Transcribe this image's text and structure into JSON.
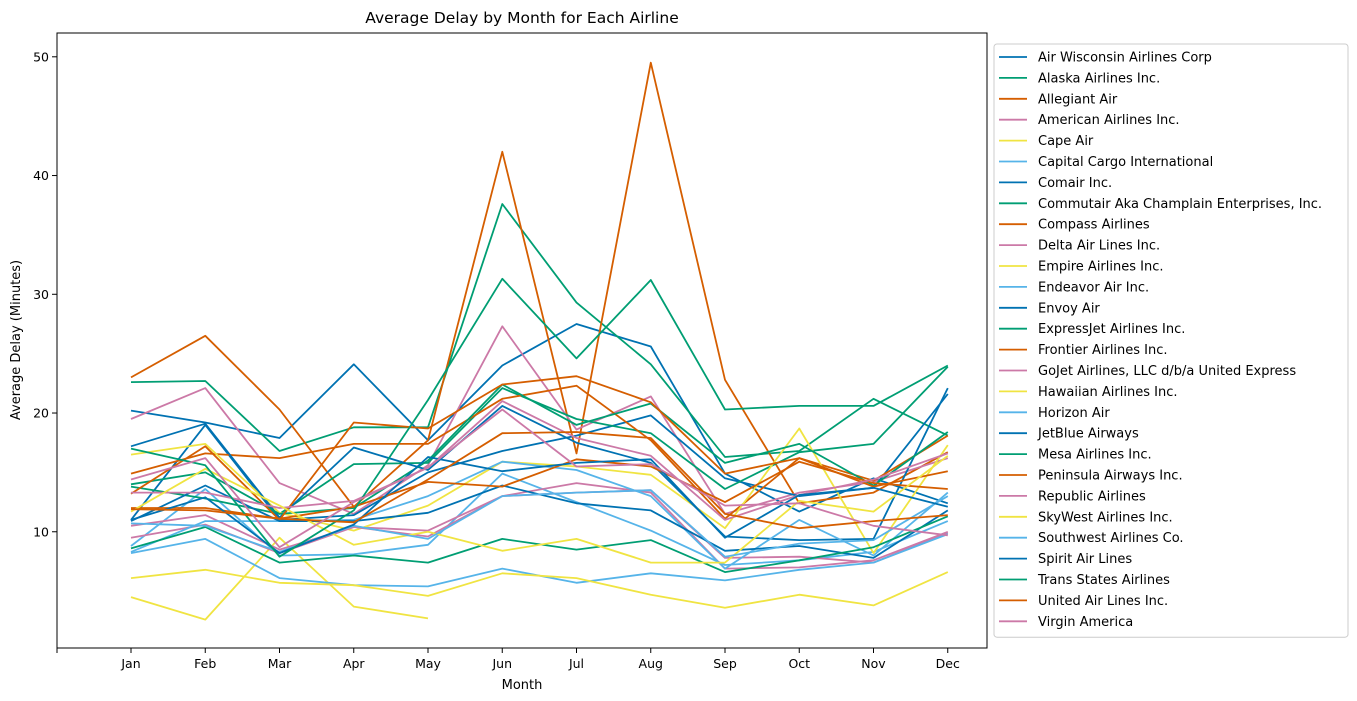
{
  "chart_data": {
    "type": "line",
    "title": "Average Delay by Month for Each Airline",
    "xlabel": "Month",
    "ylabel": "Average Delay (Minutes)",
    "categories": [
      "Jan",
      "Feb",
      "Mar",
      "Apr",
      "May",
      "Jun",
      "Jul",
      "Aug",
      "Sep",
      "Oct",
      "Nov",
      "Dec"
    ],
    "ylim": [
      0,
      52
    ],
    "yticks": [
      10,
      20,
      30,
      40,
      50
    ],
    "grid": false,
    "legend_placement": "outside-right",
    "palette": [
      "#0072B2",
      "#009E73",
      "#D55E00",
      "#CC79A7",
      "#F0E442",
      "#56B4E9"
    ],
    "series": [
      {
        "name": "Air Wisconsin Airlines Corp",
        "values": [
          20.2,
          19.2,
          17.9,
          24.1,
          17.7,
          24.0,
          27.5,
          25.6,
          14.9,
          11.7,
          14.5,
          12.4
        ]
      },
      {
        "name": "Alaska Airlines Inc.",
        "values": [
          22.6,
          22.7,
          16.8,
          18.8,
          18.8,
          37.6,
          29.3,
          24.1,
          16.3,
          16.8,
          21.2,
          18.1
        ]
      },
      {
        "name": "Allegiant Air",
        "values": [
          23.0,
          26.5,
          20.3,
          12.1,
          17.7,
          42.0,
          16.6,
          49.5,
          22.8,
          12.4,
          13.3,
          16.7
        ]
      },
      {
        "name": "American Airlines Inc.",
        "values": [
          19.5,
          22.1,
          14.1,
          11.5,
          15.6,
          27.3,
          18.6,
          21.4,
          11.5,
          13.3,
          14.2,
          16.2
        ]
      },
      {
        "name": "Cape Air",
        "values": [
          4.5,
          2.6,
          9.5,
          3.7,
          2.7,
          null,
          null,
          null,
          null,
          null,
          null,
          null
        ]
      },
      {
        "name": "Capital Cargo International",
        "values": [
          8.8,
          13.6,
          8.0,
          8.1,
          8.9,
          14.9,
          12.5,
          10.1,
          7.2,
          7.6,
          8.3,
          10.9
        ]
      },
      {
        "name": "Comair Inc.",
        "values": [
          11.0,
          19.0,
          11.0,
          11.4,
          15.0,
          16.8,
          18.1,
          19.8,
          14.5,
          13.0,
          13.7,
          21.6
        ]
      },
      {
        "name": "Commutair Aka Champlain Enterprises, Inc.",
        "values": [
          13.8,
          12.8,
          11.5,
          15.7,
          15.8,
          22.1,
          19.5,
          18.3,
          13.6,
          16.7,
          17.4,
          23.9
        ]
      },
      {
        "name": "Compass Airlines",
        "values": [
          14.9,
          16.6,
          16.2,
          17.4,
          17.4,
          21.2,
          22.3,
          17.7,
          11.1,
          16.2,
          14.3,
          18.1
        ]
      },
      {
        "name": "Delta Air Lines Inc.",
        "values": [
          10.5,
          11.4,
          8.5,
          10.4,
          10.1,
          13.0,
          13.3,
          13.5,
          7.8,
          7.9,
          7.4,
          9.9
        ]
      },
      {
        "name": "Empire Airlines Inc.",
        "values": [
          16.5,
          17.4,
          11.6,
          10.1,
          12.2,
          15.9,
          15.5,
          14.8,
          10.3,
          18.7,
          8.2,
          17.3
        ]
      },
      {
        "name": "Endeavor Air Inc.",
        "values": [
          8.2,
          9.4,
          6.1,
          5.5,
          5.4,
          6.9,
          5.7,
          6.5,
          5.9,
          6.8,
          7.4,
          9.8
        ]
      },
      {
        "name": "Envoy Air",
        "values": [
          17.2,
          19.1,
          11.2,
          17.1,
          15.2,
          20.6,
          17.5,
          15.8,
          9.6,
          9.3,
          9.4,
          22.1
        ]
      },
      {
        "name": "ExpressJet Airlines Inc.",
        "values": [
          14.0,
          15.0,
          11.5,
          12.0,
          16.0,
          22.4,
          19.0,
          20.8,
          15.8,
          17.4,
          13.9,
          18.4
        ]
      },
      {
        "name": "Frontier Airlines Inc.",
        "values": [
          13.2,
          17.2,
          11.0,
          19.2,
          18.7,
          22.4,
          23.1,
          20.9,
          14.9,
          16.2,
          13.8,
          15.1
        ]
      },
      {
        "name": "GoJet Airlines, LLC d/b/a United Express",
        "values": [
          9.5,
          10.6,
          8.2,
          10.4,
          9.6,
          13.0,
          14.1,
          13.3,
          6.9,
          7.0,
          7.6,
          10.0
        ]
      },
      {
        "name": "Hawaiian Airlines Inc.",
        "values": [
          6.1,
          6.8,
          5.7,
          5.5,
          4.6,
          6.5,
          6.1,
          4.7,
          3.6,
          4.7,
          3.8,
          6.6
        ]
      },
      {
        "name": "Horizon Air",
        "values": [
          8.3,
          10.9,
          10.9,
          11.0,
          13.0,
          15.9,
          15.2,
          13.0,
          6.9,
          11.0,
          8.0,
          13.3
        ]
      },
      {
        "name": "JetBlue Airways",
        "values": [
          10.9,
          13.9,
          10.9,
          10.9,
          11.6,
          13.9,
          12.4,
          11.8,
          8.4,
          8.8,
          7.8,
          11.8
        ]
      },
      {
        "name": "Mesa Airlines Inc.",
        "values": [
          8.6,
          10.4,
          7.4,
          8.0,
          7.4,
          9.4,
          8.5,
          9.3,
          6.6,
          7.6,
          8.7,
          11.3
        ]
      },
      {
        "name": "Peninsula Airways Inc.",
        "values": [
          12.0,
          12.0,
          11.1,
          12.1,
          14.2,
          13.8,
          16.1,
          15.5,
          12.5,
          15.9,
          14.1,
          13.6
        ]
      },
      {
        "name": "Republic Airlines",
        "values": [
          13.3,
          13.3,
          12.0,
          12.6,
          15.4,
          21.0,
          17.9,
          16.4,
          11.0,
          13.1,
          14.4,
          16.6
        ]
      },
      {
        "name": "SkyWest Airlines Inc.",
        "values": [
          11.7,
          15.3,
          12.2,
          8.9,
          10.0,
          8.4,
          9.4,
          7.4,
          7.4,
          12.6,
          11.7,
          16.4
        ]
      },
      {
        "name": "Southwest Airlines Co.",
        "values": [
          10.7,
          10.5,
          8.3,
          10.5,
          9.4,
          13.0,
          13.3,
          13.5,
          7.9,
          9.0,
          9.3,
          13.0
        ]
      },
      {
        "name": "Spirit Air Lines",
        "values": [
          11.0,
          12.9,
          8.2,
          10.6,
          16.3,
          15.1,
          15.8,
          16.1,
          9.5,
          13.1,
          13.7,
          12.1
        ]
      },
      {
        "name": "Trans States Airlines",
        "values": [
          17.0,
          15.6,
          7.9,
          11.8,
          21.1,
          31.3,
          24.6,
          31.2,
          20.3,
          20.6,
          20.6,
          24.0
        ]
      },
      {
        "name": "United Air Lines Inc.",
        "values": [
          11.9,
          11.8,
          11.1,
          10.8,
          14.4,
          18.3,
          18.4,
          17.9,
          11.5,
          10.3,
          10.9,
          11.4
        ]
      },
      {
        "name": "Virgin America",
        "values": [
          14.4,
          16.2,
          8.7,
          12.5,
          15.4,
          20.3,
          15.5,
          15.7,
          12.2,
          12.4,
          10.5,
          9.7
        ]
      }
    ]
  }
}
